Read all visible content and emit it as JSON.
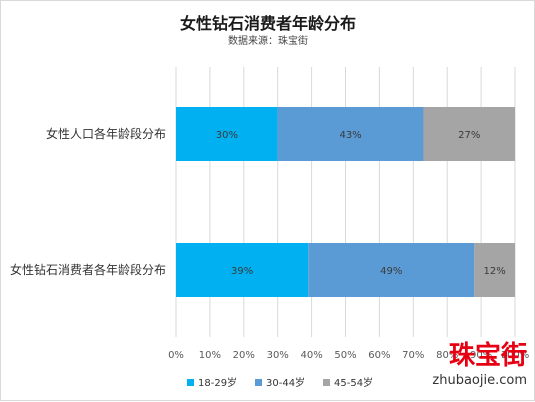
{
  "chart_data": {
    "type": "bar",
    "orientation": "horizontal",
    "stacked": "percent",
    "title": "女性钻石消费者年龄分布",
    "subtitle": "数据来源：珠宝街",
    "categories": [
      "女性人口各年龄段分布",
      "女性钻石消费者各年龄段分布"
    ],
    "series": [
      {
        "name": "18-29岁",
        "values": [
          30,
          39
        ],
        "labels": [
          "30%",
          "39%"
        ],
        "color": "#00b0f0"
      },
      {
        "name": "30-44岁",
        "values": [
          43,
          49
        ],
        "labels": [
          "43%",
          "49%"
        ],
        "color": "#5b9bd5"
      },
      {
        "name": "45-54岁",
        "values": [
          27,
          12
        ],
        "labels": [
          "27%",
          "12%"
        ],
        "color": "#a5a5a5"
      }
    ],
    "xlim": [
      0,
      100
    ],
    "xticks": [
      "0%",
      "10%",
      "20%",
      "30%",
      "40%",
      "50%",
      "60%",
      "70%",
      "80%",
      "90%",
      "100%"
    ],
    "grid": true,
    "gridline_color": "#d9d9d9",
    "legend_position": "bottom-left"
  },
  "watermark": {
    "text_cn": "珠宝街",
    "text_en": "zhubaojie.com",
    "color": "#e60012"
  }
}
